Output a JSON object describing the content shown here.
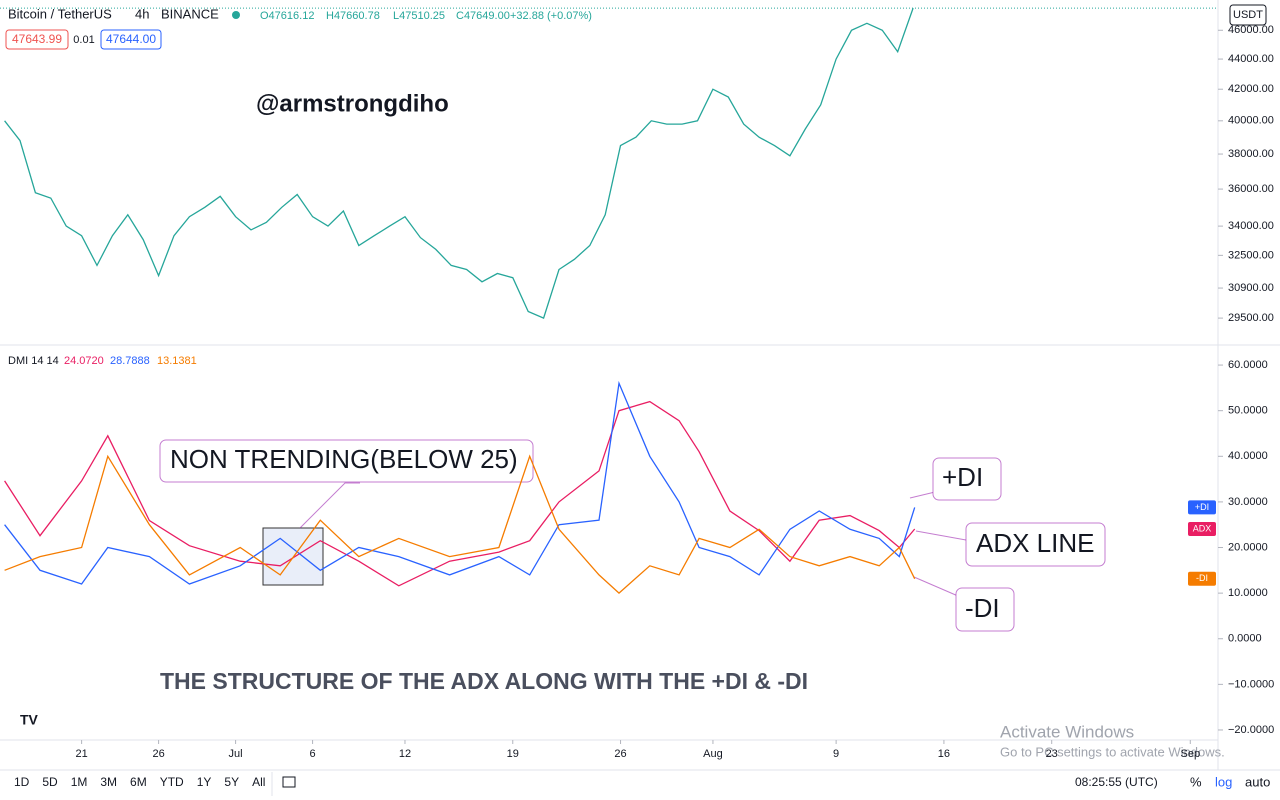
{
  "header": {
    "symbol": "Bitcoin / TetherUS",
    "interval": "4h",
    "exchange": "BINANCE",
    "open": "O47616.12",
    "high": "H47660.78",
    "low": "L47510.25",
    "close": "C47649.00",
    "change": "+32.88 (+0.07%)",
    "sell": "47643.99",
    "spread": "0.01",
    "buy": "47644.00"
  },
  "watermark_user": "@armstrongdiho",
  "price_chart": {
    "type": "line",
    "log_scale": true,
    "currency": "USDT",
    "color": "#26a69a",
    "x": [
      16,
      17,
      18,
      19,
      20,
      21,
      22,
      23,
      24,
      25,
      26,
      27,
      28,
      29,
      30,
      31,
      32,
      33,
      34,
      35,
      36,
      37,
      38,
      39,
      40,
      41,
      42,
      43,
      44,
      45,
      46,
      47,
      48,
      49,
      50,
      51,
      52,
      53,
      54,
      55,
      56,
      57,
      58,
      59,
      60,
      61,
      62,
      63,
      64,
      65,
      66,
      67,
      68,
      69,
      70,
      71,
      72,
      73,
      74,
      75
    ],
    "values": [
      40000,
      38800,
      35800,
      35500,
      34000,
      33500,
      32000,
      33500,
      34600,
      33300,
      31500,
      33500,
      34500,
      35000,
      35600,
      34500,
      33800,
      34200,
      35000,
      35700,
      34500,
      34000,
      34800,
      33000,
      33500,
      34000,
      34500,
      33400,
      32800,
      32000,
      31800,
      31200,
      31600,
      31400,
      29800,
      29500,
      31800,
      32300,
      33000,
      34600,
      38500,
      39000,
      40000,
      39800,
      39800,
      40000,
      42000,
      41500,
      39800,
      39000,
      38500,
      37900,
      39500,
      41000,
      44000,
      46000,
      46500,
      46000,
      44500,
      47600
    ],
    "xlim": [
      15.7,
      94.8
    ],
    "ylim": [
      28300,
      48200
    ],
    "yticks": [
      {
        "value": 46000,
        "label": "46000.00"
      },
      {
        "value": 44000,
        "label": "44000.00"
      },
      {
        "value": 42000,
        "label": "42000.00"
      },
      {
        "value": 40000,
        "label": "40000.00"
      },
      {
        "value": 38000,
        "label": "38000.00"
      },
      {
        "value": 36000,
        "label": "36000.00"
      },
      {
        "value": 34000,
        "label": "34000.00"
      },
      {
        "value": 32500,
        "label": "32500.00"
      },
      {
        "value": 30900,
        "label": "30900.00"
      },
      {
        "value": 29500,
        "label": "29500.00"
      }
    ]
  },
  "dmi_chart": {
    "type": "line",
    "title": "DMI 14 14",
    "legend_values": [
      "24.0720",
      "28.7888",
      "13.1381"
    ],
    "x": [
      16,
      18.3,
      21,
      22.7,
      25.4,
      28,
      31.3,
      33.9,
      36.5,
      39,
      41.6,
      44.9,
      48.1,
      50.1,
      52,
      54.6,
      55.9,
      57.9,
      59.8,
      61.1,
      63.1,
      65,
      67,
      68.9,
      70.9,
      72.8,
      74.1,
      75.1
    ],
    "series": [
      {
        "name": "ADX",
        "color": "#e91e63",
        "values": [
          34.6,
          22.6,
          34.6,
          44.5,
          25.9,
          20.4,
          17,
          16,
          21.5,
          17,
          11.6,
          17,
          19,
          21.5,
          30,
          36.8,
          50,
          52,
          47.8,
          41,
          28,
          23.7,
          17,
          26,
          27,
          23.7,
          20,
          24.07
        ]
      },
      {
        "name": "+DI",
        "color": "#2962ff",
        "values": [
          25,
          15,
          12,
          20,
          18,
          12,
          16,
          22,
          15,
          20,
          18,
          14,
          18,
          14,
          25,
          26,
          56,
          40,
          30,
          20,
          18,
          14,
          24,
          28,
          24,
          22,
          18,
          28.79
        ]
      },
      {
        "name": "-DI",
        "color": "#f57c00",
        "values": [
          15,
          18,
          20,
          40,
          25,
          14,
          20,
          14,
          26,
          18,
          22,
          18,
          20,
          40,
          24,
          14,
          10,
          16,
          14,
          22,
          20,
          24,
          18,
          16,
          18,
          16,
          20,
          13.14
        ]
      }
    ],
    "xlim": [
      15.7,
      94.8
    ],
    "ylim": [
      -22.2,
      64.4
    ],
    "yticks": [
      {
        "value": 60,
        "label": "60.0000"
      },
      {
        "value": 50,
        "label": "50.0000"
      },
      {
        "value": 40,
        "label": "40.0000"
      },
      {
        "value": 30,
        "label": "30.0000"
      },
      {
        "value": 20,
        "label": "20.0000"
      },
      {
        "value": 10,
        "label": "10.0000"
      },
      {
        "value": 0,
        "label": "0.0000"
      },
      {
        "value": -10,
        "label": "−10.0000"
      },
      {
        "value": -20,
        "label": "−20.0000"
      }
    ]
  },
  "xticks": [
    {
      "value": 21,
      "label": "21"
    },
    {
      "value": 26,
      "label": "26"
    },
    {
      "value": 31,
      "label": "Jul"
    },
    {
      "value": 36,
      "label": "6"
    },
    {
      "value": 42,
      "label": "12"
    },
    {
      "value": 49,
      "label": "19"
    },
    {
      "value": 56,
      "label": "26"
    },
    {
      "value": 62,
      "label": "Aug"
    },
    {
      "value": 70,
      "label": "9"
    },
    {
      "value": 77,
      "label": "16"
    },
    {
      "value": 84,
      "label": "23"
    },
    {
      "value": 93,
      "label": "Sep"
    }
  ],
  "annotations": {
    "non_trending": "NON TRENDING(BELOW 25)",
    "plus_di": "+DI",
    "adx_line": "ADX LINE",
    "minus_di": "-DI",
    "caption": "THE STRUCTURE OF THE ADX ALONG WITH THE +DI & -DI"
  },
  "bottom_bar": {
    "ranges": [
      "1D",
      "5D",
      "1M",
      "3M",
      "6M",
      "YTD",
      "1Y",
      "5Y",
      "All"
    ],
    "time": "08:25:55 (UTC)",
    "percent": "%",
    "log": "log",
    "auto": "auto"
  },
  "os_overlay": {
    "title": "Activate Windows",
    "text": "Go to PC settings to activate Windows."
  }
}
